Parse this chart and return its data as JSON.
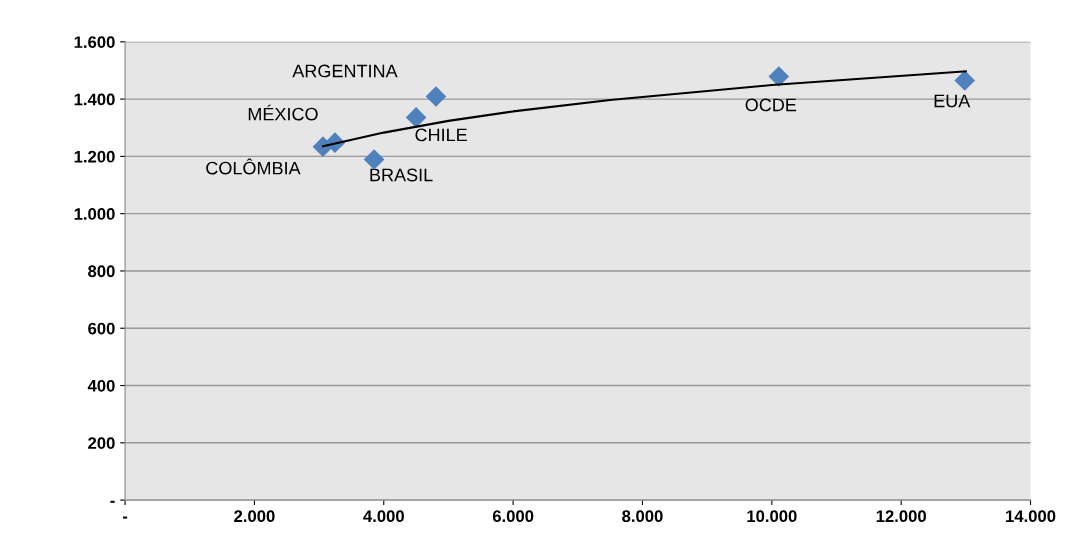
{
  "chart_data": {
    "type": "scatter",
    "series": [
      {
        "color": "#4f81bd",
        "marker": "diamond",
        "x": [
          3060,
          3245,
          4807,
          4500,
          3850,
          10108,
          12983
        ],
        "values": [
          1234,
          1248,
          1409,
          1336,
          1189,
          1479,
          1465
        ]
      },
      {
        "type": "line",
        "color": "#000000",
        "x": [
          3060,
          4000,
          5000,
          6000,
          7500,
          10000,
          13000
        ],
        "values": [
          1235,
          1283,
          1324,
          1357,
          1397,
          1449,
          1497
        ]
      }
    ],
    "annotations": [
      {
        "text": "COLÔMBIA",
        "x": 3060,
        "y": 1234
      },
      {
        "text": "MÉXICO",
        "x": 3245,
        "y": 1248
      },
      {
        "text": "ARGENTINA",
        "x": 4807,
        "y": 1409
      },
      {
        "text": "CHILE",
        "x": 4500,
        "y": 1336
      },
      {
        "text": "BRASIL",
        "x": 3850,
        "y": 1189
      },
      {
        "text": "OCDE",
        "x": 10108,
        "y": 1479
      },
      {
        "text": "EUA",
        "x": 12983,
        "y": 1465
      }
    ],
    "xlim": [
      0,
      14000
    ],
    "xticks": [
      {
        "value": 0,
        "label": "-"
      },
      {
        "value": 2000,
        "label": "2.000"
      },
      {
        "value": 4000,
        "label": "4.000"
      },
      {
        "value": 6000,
        "label": "6.000"
      },
      {
        "value": 8000,
        "label": "8.000"
      },
      {
        "value": 10000,
        "label": "10.000"
      },
      {
        "value": 12000,
        "label": "12.000"
      },
      {
        "value": 14000,
        "label": "14.000"
      }
    ],
    "ylim": [
      0,
      1600
    ],
    "yticks": [
      {
        "value": 0,
        "label": "-"
      },
      200,
      400,
      600,
      800,
      {
        "value": 1000,
        "label": "1.000"
      },
      {
        "value": 1200,
        "label": "1.200"
      },
      {
        "value": 1400,
        "label": "1.400"
      },
      {
        "value": 1600,
        "label": "1.600"
      }
    ],
    "grid": "y",
    "legend": false
  }
}
